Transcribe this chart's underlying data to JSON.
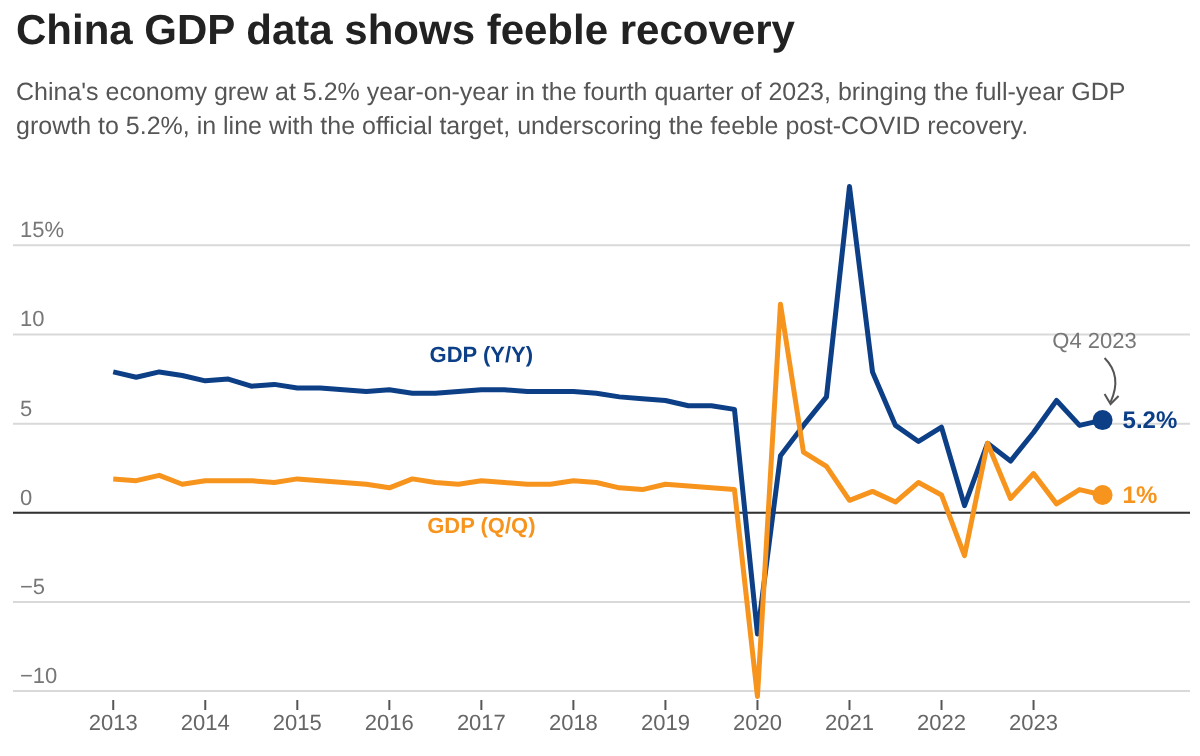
{
  "chart_data": {
    "type": "line",
    "title": "China GDP data shows feeble recovery",
    "subtitle": "China's economy grew at 5.2% year-on-year in the fourth quarter of 2023, bringing the full-year GDP growth to 5.2%, in line with the official target, underscoring the feeble post-COVID recovery.",
    "x": [
      2013,
      2013.25,
      2013.5,
      2013.75,
      2014,
      2014.25,
      2014.5,
      2014.75,
      2015,
      2015.25,
      2015.5,
      2015.75,
      2016,
      2016.25,
      2016.5,
      2016.75,
      2017,
      2017.25,
      2017.5,
      2017.75,
      2018,
      2018.25,
      2018.5,
      2018.75,
      2019,
      2019.25,
      2019.5,
      2019.75,
      2020,
      2020.25,
      2020.5,
      2020.75,
      2021,
      2021.25,
      2021.5,
      2021.75,
      2022,
      2022.25,
      2022.5,
      2022.75,
      2023,
      2023.25,
      2023.5,
      2023.75
    ],
    "series": [
      {
        "name": "GDP (Y/Y)",
        "color": "#0d3f87",
        "values": [
          7.9,
          7.6,
          7.9,
          7.7,
          7.4,
          7.5,
          7.1,
          7.2,
          7.0,
          7.0,
          6.9,
          6.8,
          6.9,
          6.7,
          6.7,
          6.8,
          6.9,
          6.9,
          6.8,
          6.8,
          6.8,
          6.7,
          6.5,
          6.4,
          6.3,
          6.0,
          6.0,
          5.8,
          -6.8,
          3.2,
          4.9,
          6.5,
          18.3,
          7.9,
          4.9,
          4.0,
          4.8,
          0.4,
          3.9,
          2.9,
          4.5,
          6.3,
          4.9,
          5.2
        ],
        "value_labels": [
          null,
          null,
          null,
          null,
          null,
          null,
          null,
          null,
          null,
          null,
          null,
          null,
          null,
          null,
          null,
          null,
          null,
          null,
          null,
          null,
          null,
          null,
          null,
          null,
          null,
          null,
          null,
          null,
          null,
          null,
          null,
          null,
          null,
          null,
          null,
          null,
          null,
          null,
          null,
          null,
          null,
          null,
          null,
          "5.2%"
        ]
      },
      {
        "name": "GDP (Q/Q)",
        "color": "#f7941d",
        "values": [
          1.9,
          1.8,
          2.1,
          1.6,
          1.8,
          1.8,
          1.8,
          1.7,
          1.9,
          1.8,
          1.7,
          1.6,
          1.4,
          1.9,
          1.7,
          1.6,
          1.8,
          1.7,
          1.6,
          1.6,
          1.8,
          1.7,
          1.4,
          1.3,
          1.6,
          1.5,
          1.4,
          1.3,
          -10.3,
          11.7,
          3.4,
          2.6,
          0.7,
          1.2,
          0.6,
          1.7,
          1.0,
          -2.4,
          3.9,
          0.8,
          2.2,
          0.5,
          1.3,
          1.0
        ],
        "value_labels": [
          null,
          null,
          null,
          null,
          null,
          null,
          null,
          null,
          null,
          null,
          null,
          null,
          null,
          null,
          null,
          null,
          null,
          null,
          null,
          null,
          null,
          null,
          null,
          null,
          null,
          null,
          null,
          null,
          null,
          null,
          null,
          null,
          null,
          null,
          null,
          null,
          null,
          null,
          null,
          null,
          null,
          null,
          null,
          "1%"
        ]
      }
    ],
    "annotations": [
      {
        "text": "Q4 2023",
        "x": 2023.75,
        "y": 5.2
      }
    ],
    "xlim": [
      2011.9,
      2024.7
    ],
    "xticks": [
      2013,
      2014,
      2015,
      2016,
      2017,
      2018,
      2019,
      2020,
      2021,
      2022,
      2023
    ],
    "ylim": [
      -10.5,
      19
    ],
    "yticks": [
      {
        "value": -10,
        "label": "−10"
      },
      {
        "value": -5,
        "label": "−5"
      },
      0,
      5,
      10,
      {
        "value": 15,
        "label": "15%"
      }
    ],
    "ref_lines": [
      {
        "axis": "y",
        "value": 0,
        "color": "#333333"
      }
    ],
    "grid": "y",
    "marker": "none",
    "line_style": "solid"
  }
}
